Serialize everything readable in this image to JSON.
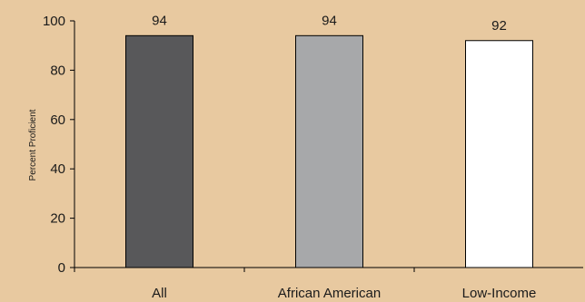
{
  "chart_data": {
    "type": "bar",
    "title": "",
    "xlabel": "",
    "ylabel": "Percent Proficient",
    "ylim": [
      0,
      100
    ],
    "yticks": [
      0,
      20,
      40,
      60,
      80,
      100
    ],
    "grid": false,
    "categories": [
      "All",
      "African American",
      "Low-Income"
    ],
    "values": [
      94,
      94,
      92
    ],
    "data_labels": [
      "94",
      "94",
      "92"
    ],
    "bar_colors": [
      "#58585a",
      "#a7a8aa",
      "#ffffff"
    ],
    "bar_stroke": "#000000",
    "background": "#e8c9a0"
  }
}
